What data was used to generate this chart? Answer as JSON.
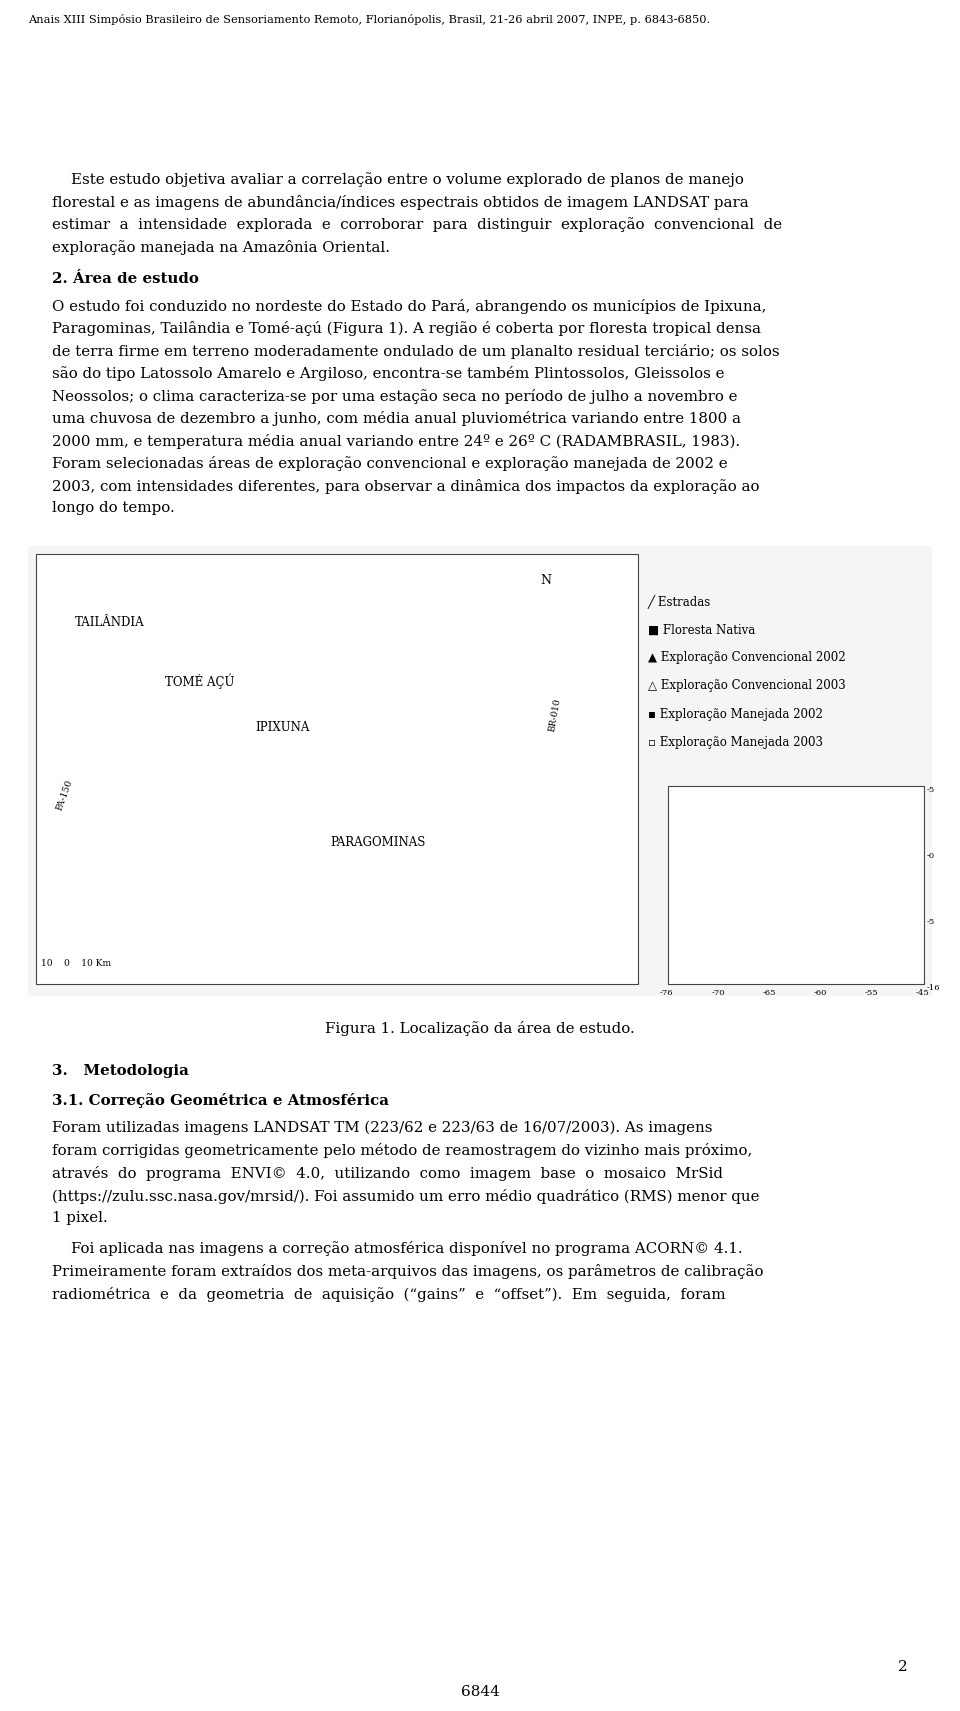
{
  "background_color": "#ffffff",
  "page_width": 9.6,
  "page_height": 17.11,
  "dpi": 100,
  "header_text": "Anais XIII Simpósio Brasileiro de Sensoriamento Remoto, Florianópolis, Brasil, 21-26 abril 2007, INPE, p. 6843-6850.",
  "header_fontsize": 8.2,
  "body_fontsize": 10.8,
  "text_color": "#000000",
  "p1_lines": [
    "    Este estudo objetiva avaliar a correlação entre o volume explorado de planos de manejo",
    "florestal e as imagens de abundância/índices espectrais obtidos de imagem LANDSAT para",
    "estimar  a  intensidade  explorada  e  corroborar  para  distinguir  exploração  convencional  de",
    "exploração manejada na Amazônia Oriental."
  ],
  "section2_title": "2. Área de estudo",
  "p2_lines": [
    "O estudo foi conduzido no nordeste do Estado do Pará, abrangendo os municípios de Ipixuna,",
    "Paragominas, Tailândia e Tomé-açú (Figura 1). A região é coberta por floresta tropical densa",
    "de terra firme em terreno moderadamente ondulado de um planalto residual terciário; os solos",
    "são do tipo Latossolo Amarelo e Argiloso, encontra-se também Plintossolos, Gleissolos e",
    "Neossolos; o clima caracteriza-se por uma estação seca no período de julho a novembro e",
    "uma chuvosa de dezembro a junho, com média anual pluviométrica variando entre 1800 a",
    "2000 mm, e temperatura média anual variando entre 24º e 26º C (RADAMBRASIL, 1983).",
    "Foram selecionadas áreas de exploração convencional e exploração manejada de 2002 e",
    "2003, com intensidades diferentes, para observar a dinâmica dos impactos da exploração ao",
    "longo do tempo."
  ],
  "figure_caption": "Figura 1. Localização da área de estudo.",
  "section3_title": "3.   Metodologia",
  "section31_title": "3.1. Correção Geométrica e Atmosférica",
  "p3_lines": [
    "Foram utilizadas imagens LANDSAT TM (223/62 e 223/63 de 16/07/2003). As imagens",
    "foram corrigidas geometricamente pelo método de reamostragem do vizinho mais próximo,",
    "através  do  programa  ENVI©  4.0,  utilizando  como  imagem  base  o  mosaico  MrSid",
    "(https://zulu.ssc.nasa.gov/mrsid/). Foi assumido um erro médio quadrático (RMS) menor que",
    "1 pixel."
  ],
  "p4_lines": [
    "    Foi aplicada nas imagens a correção atmosférica disponível no programa ACORN© 4.1.",
    "Primeiramente foram extraídos dos meta-arquivos das imagens, os parâmetros de calibração",
    "radiométrica  e  da  geometria  de  aquisição  (“gains”  e  “offset”).  Em  seguida,  foram"
  ],
  "footer_page_number": "6844",
  "page_number": "2",
  "map_legend": [
    "╱ Estradas",
    "■ Floresta Nativa",
    "▲ Exploração Convencional 2002",
    "△ Exploração Convencional 2003",
    "▪ Exploração Manejada 2002",
    "▫ Exploração Manejada 2003"
  ]
}
